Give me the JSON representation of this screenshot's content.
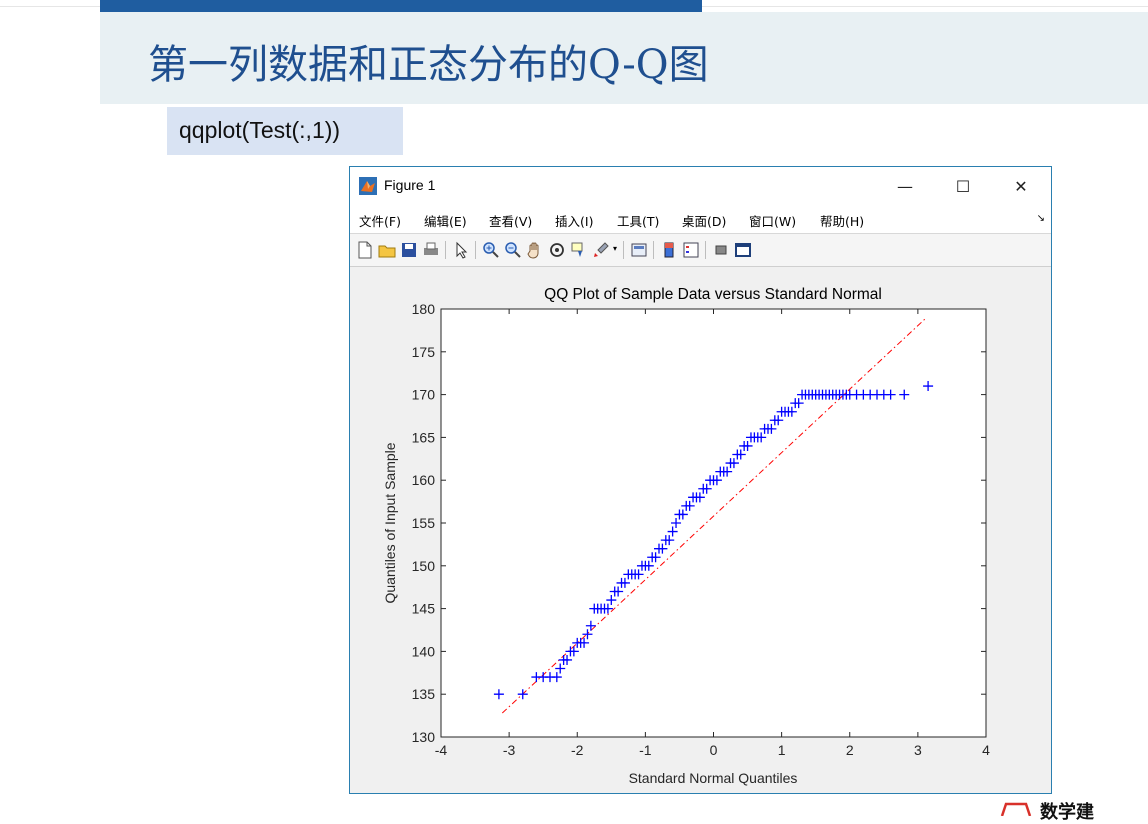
{
  "slide": {
    "title": "第一列数据和正态分布的Q-Q图",
    "code": "qqplot(Test(:,1))"
  },
  "window": {
    "title": "Figure 1",
    "minimize": "—",
    "maximize": "☐",
    "close": "✕"
  },
  "menu": [
    "文件(F)",
    "编辑(E)",
    "查看(V)",
    "插入(I)",
    "工具(T)",
    "桌面(D)",
    "窗口(W)",
    "帮助(H)"
  ],
  "toolbar_icons": [
    "new-file-icon",
    "open-folder-icon",
    "save-icon",
    "print-icon",
    "pointer-icon",
    "zoom-in-icon",
    "zoom-out-icon",
    "pan-hand-icon",
    "rotate-3d-icon",
    "data-cursor-icon",
    "brush-icon",
    "link-plot-icon",
    "colorbar-icon",
    "legend-icon",
    "hide-plot-tools-icon",
    "show-plot-tools-icon"
  ],
  "watermark_text": "数学建",
  "chart_data": {
    "type": "scatter",
    "title": "QQ Plot of Sample Data versus Standard Normal",
    "xlabel": "Standard Normal Quantiles",
    "ylabel": "Quantiles of Input Sample",
    "xlim": [
      -4,
      4
    ],
    "ylim": [
      130,
      180
    ],
    "xticks": [
      "-4",
      "-3",
      "-2",
      "-1",
      "0",
      "1",
      "2",
      "3",
      "4"
    ],
    "yticks": [
      "130",
      "135",
      "140",
      "145",
      "150",
      "155",
      "160",
      "165",
      "170",
      "175",
      "180"
    ],
    "marker": "+",
    "marker_color": "#0000ff",
    "reference_line": {
      "x": [
        -3.1,
        3.1
      ],
      "y": [
        132.8,
        178.8
      ],
      "color": "#ff0000",
      "style": "dash-dot"
    },
    "points_x": [
      -3.15,
      -2.8,
      -2.6,
      -2.5,
      -2.4,
      -2.3,
      -2.25,
      -2.2,
      -2.15,
      -2.1,
      -2.05,
      -2.0,
      -1.95,
      -1.9,
      -1.85,
      -1.8,
      -1.75,
      -1.7,
      -1.65,
      -1.6,
      -1.55,
      -1.5,
      -1.45,
      -1.4,
      -1.35,
      -1.3,
      -1.25,
      -1.2,
      -1.15,
      -1.1,
      -1.05,
      -1.0,
      -0.95,
      -0.9,
      -0.85,
      -0.8,
      -0.75,
      -0.7,
      -0.65,
      -0.6,
      -0.55,
      -0.5,
      -0.45,
      -0.4,
      -0.35,
      -0.3,
      -0.25,
      -0.2,
      -0.15,
      -0.1,
      -0.05,
      0.0,
      0.05,
      0.1,
      0.15,
      0.2,
      0.25,
      0.3,
      0.35,
      0.4,
      0.45,
      0.5,
      0.55,
      0.6,
      0.65,
      0.7,
      0.75,
      0.8,
      0.85,
      0.9,
      0.95,
      1.0,
      1.05,
      1.1,
      1.15,
      1.2,
      1.25,
      1.3,
      1.35,
      1.4,
      1.45,
      1.5,
      1.55,
      1.6,
      1.65,
      1.7,
      1.75,
      1.8,
      1.85,
      1.9,
      1.95,
      2.0,
      2.1,
      2.2,
      2.3,
      2.4,
      2.5,
      2.6,
      2.8,
      3.15
    ],
    "points_y": [
      135,
      135,
      137,
      137,
      137,
      137,
      138,
      139,
      139,
      140,
      140,
      141,
      141,
      141,
      142,
      143,
      145,
      145,
      145,
      145,
      145,
      146,
      147,
      147,
      148,
      148,
      149,
      149,
      149,
      149,
      150,
      150,
      150,
      151,
      151,
      152,
      152,
      153,
      153,
      154,
      155,
      156,
      156,
      157,
      157,
      158,
      158,
      158,
      159,
      159,
      160,
      160,
      160,
      161,
      161,
      161,
      162,
      162,
      163,
      163,
      164,
      164,
      165,
      165,
      165,
      165,
      166,
      166,
      166,
      167,
      167,
      168,
      168,
      168,
      168,
      169,
      169,
      170,
      170,
      170,
      170,
      170,
      170,
      170,
      170,
      170,
      170,
      170,
      170,
      170,
      170,
      170,
      170,
      170,
      170,
      170,
      170,
      170,
      170,
      171
    ]
  }
}
